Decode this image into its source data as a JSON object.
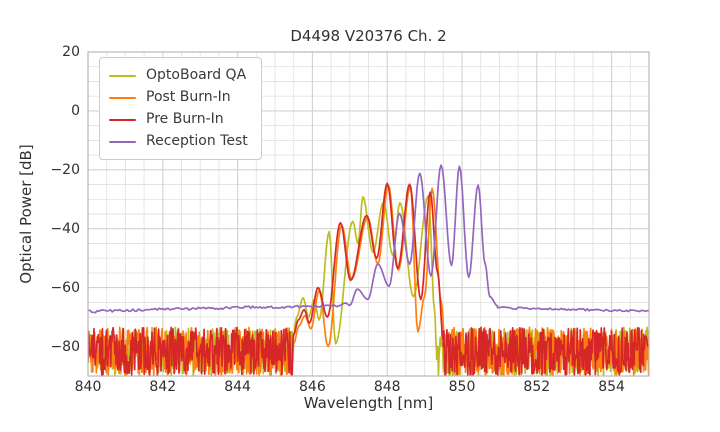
{
  "chart_data": {
    "type": "line",
    "title": "D4498 V20376 Ch. 2",
    "xlabel": "Wavelength [nm]",
    "ylabel": "Optical Power [dB]",
    "xlim": [
      840,
      855
    ],
    "ylim": [
      -90,
      20
    ],
    "xticks": [
      840,
      842,
      844,
      846,
      848,
      850,
      852,
      854
    ],
    "yticks": [
      20,
      0,
      -20,
      -40,
      -60,
      -80
    ],
    "grid": {
      "show": true,
      "minor": true,
      "minor_x_step_nm": 0.5,
      "minor_y_step_db": 5
    },
    "legend": {
      "position": "upper left",
      "entries": [
        "OptoBoard QA",
        "Post Burn-In",
        "Pre Burn-In",
        "Reception Test"
      ]
    },
    "series": [
      {
        "name": "OptoBoard QA",
        "color": "#bcbd22",
        "noise_band_db": [
          -90,
          -73.5
        ],
        "mode_peaks": [
          [
            845.75,
            -63.5
          ],
          [
            846.45,
            -41
          ],
          [
            847.08,
            -37.5
          ],
          [
            847.35,
            -29.2
          ],
          [
            847.9,
            -31
          ],
          [
            848.34,
            -31.2
          ],
          [
            849.1,
            -28.8
          ]
        ],
        "segments": [
          {
            "type": "noise",
            "from": 840,
            "to": 845.47
          },
          {
            "type": "modes",
            "points": [
              [
                845.47,
                -78
              ],
              [
                845.58,
                -70
              ],
              [
                845.75,
                -63.5
              ],
              [
                845.9,
                -70
              ],
              [
                846.05,
                -64
              ],
              [
                846.18,
                -71
              ],
              [
                846.45,
                -41
              ],
              [
                846.62,
                -79
              ],
              [
                847.08,
                -37.5
              ],
              [
                847.22,
                -45
              ],
              [
                847.35,
                -29.2
              ],
              [
                847.62,
                -48
              ],
              [
                847.9,
                -31
              ],
              [
                848.15,
                -49
              ],
              [
                848.34,
                -31.2
              ],
              [
                848.7,
                -63
              ],
              [
                849.1,
                -28.8
              ],
              [
                849.27,
                -68
              ],
              [
                849.32,
                -82
              ]
            ]
          },
          {
            "type": "noise",
            "from": 849.32,
            "to": 855
          }
        ]
      },
      {
        "name": "Post Burn-In",
        "color": "#ff7f0e",
        "noise_band_db": [
          -90,
          -73.5
        ],
        "mode_peaks": [
          [
            846.18,
            -61
          ],
          [
            846.78,
            -38.8
          ],
          [
            847.48,
            -36.2
          ],
          [
            848.03,
            -25.3
          ],
          [
            848.62,
            -25.6
          ],
          [
            849.2,
            -26.3
          ]
        ],
        "segments": [
          {
            "type": "noise",
            "from": 840,
            "to": 845.5
          },
          {
            "type": "modes",
            "points": [
              [
                845.5,
                -79
              ],
              [
                845.64,
                -73
              ],
              [
                845.8,
                -69.5
              ],
              [
                845.96,
                -74
              ],
              [
                846.18,
                -61
              ],
              [
                846.42,
                -80
              ],
              [
                846.78,
                -38.8
              ],
              [
                847.05,
                -57
              ],
              [
                847.48,
                -36.2
              ],
              [
                847.75,
                -52
              ],
              [
                848.03,
                -25.3
              ],
              [
                848.3,
                -54
              ],
              [
                848.62,
                -25.6
              ],
              [
                848.82,
                -75
              ],
              [
                849.0,
                -63
              ],
              [
                849.2,
                -26.3
              ],
              [
                849.45,
                -65
              ],
              [
                849.55,
                -80
              ]
            ]
          },
          {
            "type": "noise",
            "from": 849.55,
            "to": 855
          }
        ]
      },
      {
        "name": "Pre Burn-In",
        "color": "#d62728",
        "noise_band_db": [
          -90,
          -73.5
        ],
        "mode_peaks": [
          [
            846.15,
            -60
          ],
          [
            846.75,
            -38
          ],
          [
            847.45,
            -35.5
          ],
          [
            848.0,
            -24.6
          ],
          [
            848.6,
            -24.9
          ],
          [
            849.15,
            -27.6
          ]
        ],
        "segments": [
          {
            "type": "noise",
            "from": 840,
            "to": 845.5
          },
          {
            "type": "modes",
            "points": [
              [
                845.5,
                -76
              ],
              [
                845.62,
                -71
              ],
              [
                845.78,
                -67.5
              ],
              [
                845.92,
                -72
              ],
              [
                846.15,
                -60
              ],
              [
                846.4,
                -70
              ],
              [
                846.75,
                -38
              ],
              [
                847.02,
                -57.5
              ],
              [
                847.45,
                -35.5
              ],
              [
                847.72,
                -50
              ],
              [
                848.0,
                -24.6
              ],
              [
                848.28,
                -53.5
              ],
              [
                848.6,
                -24.9
              ],
              [
                848.9,
                -64
              ],
              [
                849.15,
                -27.6
              ],
              [
                849.35,
                -55
              ],
              [
                849.5,
                -78
              ]
            ]
          },
          {
            "type": "noise",
            "from": 849.5,
            "to": 855
          }
        ]
      },
      {
        "name": "Reception Test",
        "color": "#9467bd",
        "floor_db": -67.5,
        "mode_peaks": [
          [
            847.2,
            -60.5
          ],
          [
            847.75,
            -52
          ],
          [
            848.33,
            -34.8
          ],
          [
            848.87,
            -21.2
          ],
          [
            849.44,
            -18.4
          ],
          [
            849.93,
            -18.8
          ],
          [
            850.43,
            -25.2
          ]
        ],
        "segments": [
          {
            "type": "smooth",
            "jitter": 0.45,
            "points": [
              [
                840,
                -68.1
              ],
              [
                842,
                -67.4
              ],
              [
                844,
                -66.8
              ],
              [
                845.6,
                -66.4
              ],
              [
                846.7,
                -66.2
              ]
            ]
          },
          {
            "type": "modes",
            "points": [
              [
                846.7,
                -66.2
              ],
              [
                846.88,
                -65.2
              ],
              [
                847.0,
                -66
              ],
              [
                847.2,
                -60.5
              ],
              [
                847.48,
                -64
              ],
              [
                847.75,
                -52
              ],
              [
                848.05,
                -59.5
              ],
              [
                848.33,
                -34.8
              ],
              [
                848.6,
                -52
              ],
              [
                848.87,
                -21.2
              ],
              [
                849.17,
                -56
              ],
              [
                849.44,
                -18.4
              ],
              [
                849.72,
                -52.5
              ],
              [
                849.93,
                -18.8
              ],
              [
                850.18,
                -56.5
              ],
              [
                850.43,
                -25.2
              ],
              [
                850.62,
                -52
              ],
              [
                850.74,
                -63
              ],
              [
                850.95,
                -66.2
              ]
            ]
          },
          {
            "type": "smooth",
            "jitter": 0.35,
            "points": [
              [
                850.95,
                -66.6
              ],
              [
                851.6,
                -67.1
              ],
              [
                853,
                -67.4
              ],
              [
                855,
                -68
              ]
            ]
          }
        ]
      }
    ]
  }
}
